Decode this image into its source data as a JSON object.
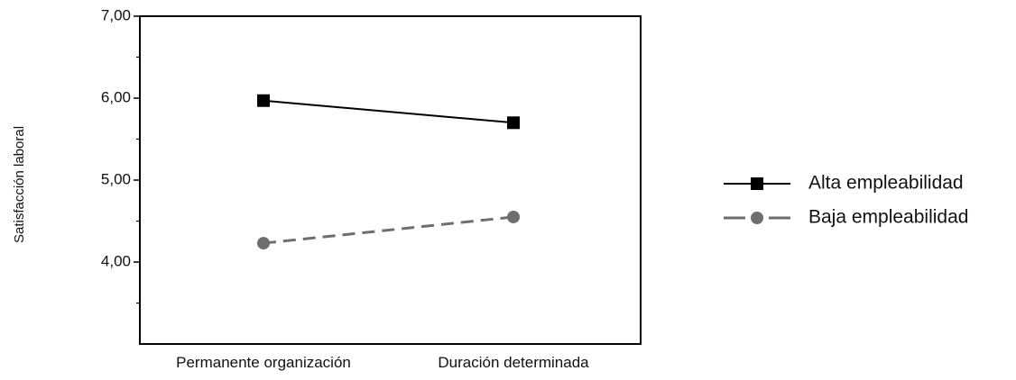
{
  "chart_data": {
    "type": "line",
    "title": "",
    "xlabel": "",
    "ylabel": "Satisfacción laboral",
    "categories": [
      "Permanente organización",
      "Duración determinada"
    ],
    "ylim": [
      3.0,
      7.0
    ],
    "yticks_major": [
      7.0,
      6.0,
      5.0,
      4.0
    ],
    "ytick_labels": [
      "7,00",
      "6,00",
      "5,00",
      "4,00"
    ],
    "yticks_minor": [
      6.5,
      5.5,
      4.5,
      3.5
    ],
    "grid": false,
    "legend_position": "right",
    "series": [
      {
        "name": "Alta empleabilidad",
        "values": [
          5.97,
          5.7
        ],
        "color": "#000000",
        "marker": "square",
        "line_style": "solid"
      },
      {
        "name": "Baja empleabilidad",
        "values": [
          4.23,
          4.55
        ],
        "color": "#6e6e6e",
        "marker": "circle",
        "line_style": "dashed"
      }
    ]
  }
}
